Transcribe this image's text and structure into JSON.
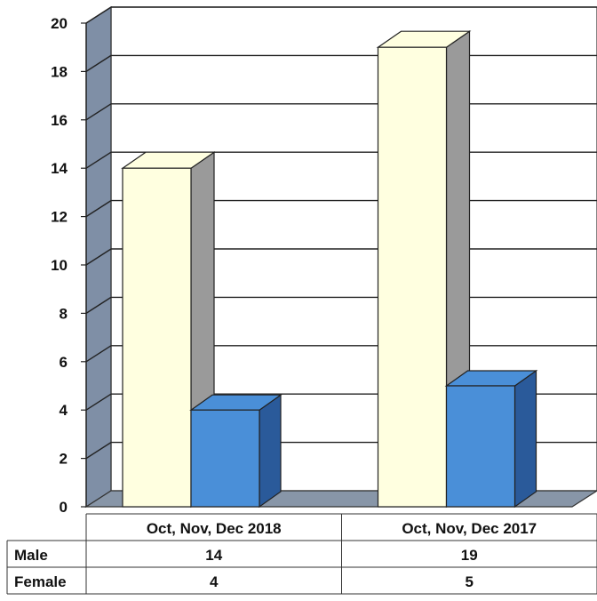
{
  "chart_data": {
    "type": "bar",
    "title": "",
    "xlabel": "",
    "ylabel": "",
    "categories": [
      "Oct, Nov, Dec 2018",
      "Oct, Nov, Dec 2017"
    ],
    "series": [
      {
        "name": "Male",
        "values": [
          14,
          19
        ],
        "color": "#ffffe0"
      },
      {
        "name": "Female",
        "values": [
          4,
          5
        ],
        "color": "#4a8fd8"
      }
    ],
    "ylim": [
      0,
      20
    ],
    "yticks": [
      "0",
      "2",
      "4",
      "6",
      "8",
      "10",
      "12",
      "14",
      "16",
      "18",
      "20"
    ],
    "grid": true,
    "legend": "data-table-below",
    "style": "3d-column",
    "colors": {
      "wall": "#ffffff",
      "side_wall": "#7f8fa6",
      "floor": "#8896a8",
      "grid": "#222222",
      "male_side": "#9a9a9a",
      "female_side": "#2a5a9a"
    }
  }
}
